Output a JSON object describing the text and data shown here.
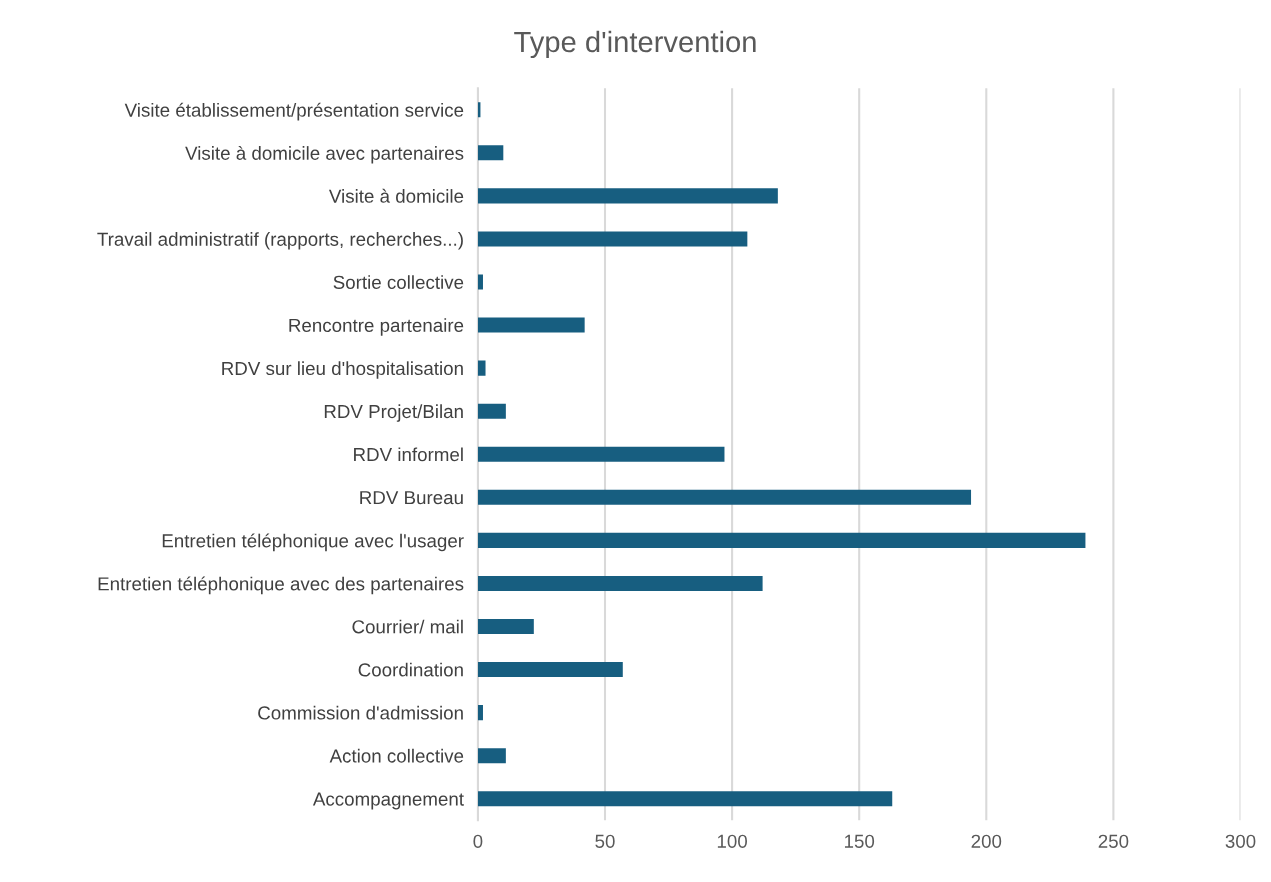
{
  "chart_data": {
    "type": "bar",
    "orientation": "horizontal",
    "title": "Type d'intervention",
    "categories": [
      "Visite établissement/présentation service",
      "Visite à domicile avec partenaires",
      "Visite à domicile",
      "Travail administratif (rapports, recherches...)",
      "Sortie collective",
      "Rencontre partenaire",
      "RDV sur lieu d'hospitalisation",
      "RDV Projet/Bilan",
      "RDV informel",
      "RDV Bureau",
      "Entretien téléphonique avec l'usager",
      "Entretien téléphonique avec des partenaires",
      "Courrier/ mail",
      "Coordination",
      "Commission d'admission",
      "Action collective",
      "Accompagnement"
    ],
    "values": [
      1,
      10,
      118,
      106,
      2,
      42,
      3,
      11,
      97,
      194,
      239,
      112,
      22,
      57,
      2,
      11,
      163
    ],
    "color": "#175e80",
    "xlim": [
      0,
      300
    ],
    "xticks": [
      0,
      50,
      100,
      150,
      200,
      250,
      300
    ],
    "grid": "x",
    "legend": false
  }
}
